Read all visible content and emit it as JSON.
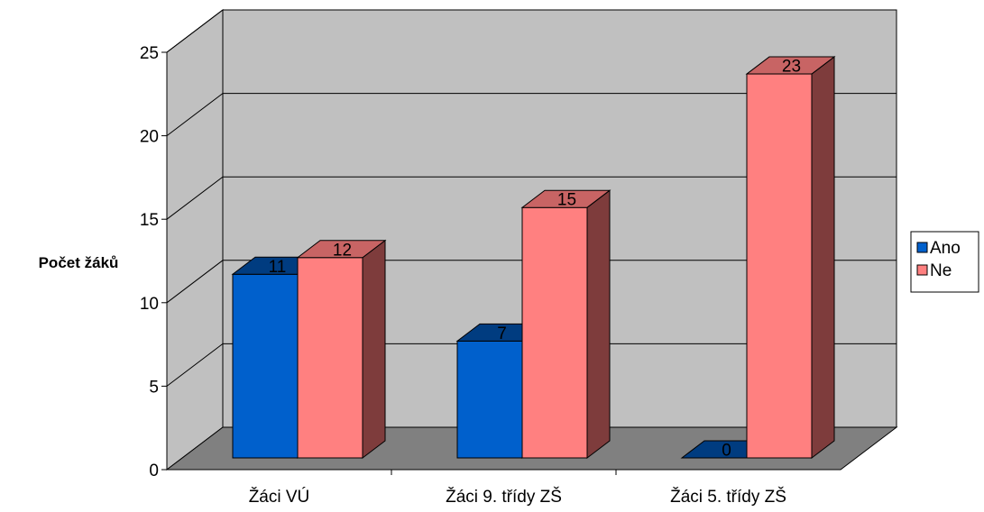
{
  "chart_data": {
    "type": "bar",
    "subtype": "3d-clustered-column",
    "categories": [
      "Žáci VÚ",
      "Žáci 9. třídy ZŠ",
      "Žáci 5. třídy ZŠ"
    ],
    "series": [
      {
        "name": "Ano",
        "values": [
          11,
          7,
          0
        ],
        "color": "#0060CC"
      },
      {
        "name": "Ne",
        "values": [
          12,
          15,
          23
        ],
        "color": "#FF8080"
      }
    ],
    "title": "",
    "xlabel": "",
    "ylabel": "Počet žáků",
    "ylim": [
      0,
      25
    ],
    "yticks": [
      0,
      5,
      10,
      15,
      20,
      25
    ],
    "grid": true,
    "data_labels": true,
    "legend_position": "right",
    "colors": {
      "wall": "#C0C0C0",
      "floor": "#808080",
      "ano_top": "#003C80",
      "ano_side": "#00346E",
      "ne_top": "#C86464",
      "ne_side": "#7E3C3C"
    }
  }
}
